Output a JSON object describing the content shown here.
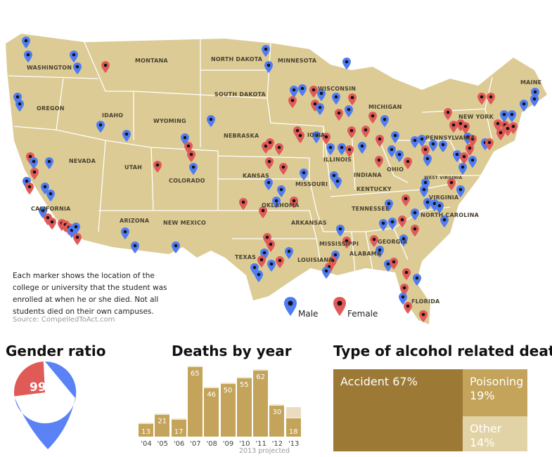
{
  "map": {
    "states": [
      "WASHINGTON",
      "MONTANA",
      "NORTH DAKOTA",
      "MINNESOTA",
      "OREGON",
      "IDAHO",
      "SOUTH DAKOTA",
      "WISCONSIN",
      "MICHIGAN",
      "WYOMING",
      "NEBRASKA",
      "IOWA",
      "NEW YORK",
      "MAINE",
      "NEVADA",
      "UTAH",
      "COLORADO",
      "ILLINOIS",
      "INDIANA",
      "OHIO",
      "PENNSYLVANIA",
      "KANSAS",
      "MISSOURI",
      "KENTUCKY",
      "WEST VIRGINIA",
      "VIRGINIA",
      "CALIFORNIA",
      "TENNESSEE",
      "NORTH CAROLINA",
      "ARIZONA",
      "NEW MEXICO",
      "OKLAHOMA",
      "ARKANSAS",
      "MISSISSIPPI",
      "ALABAMA",
      "GEORGIA",
      "TEXAS",
      "LOUISIANA",
      "FLORIDA"
    ],
    "note": "Each marker shows the location of the college or university that the student was enrolled at when he or she died. Not all students died on their own campuses.",
    "source": "Source: CompelledToAct.com",
    "legend": {
      "male": "Male",
      "female": "Female"
    },
    "colors": {
      "land": "#dccb95",
      "male": "#4f7cf2",
      "female": "#e05a58"
    }
  },
  "chart_data": [
    {
      "type": "pie",
      "title": "Gender ratio",
      "categories": [
        "Female",
        "Male"
      ],
      "values": [
        99,
        279
      ],
      "colors": [
        "#e05a58",
        "#5b82f5"
      ]
    },
    {
      "type": "bar",
      "title": "Deaths by year",
      "categories": [
        "'04",
        "'05",
        "'06",
        "'07",
        "'08",
        "'09",
        "'10",
        "'11",
        "'12",
        "'13"
      ],
      "values": [
        13,
        21,
        17,
        65,
        46,
        50,
        55,
        62,
        30,
        18
      ],
      "projected_2013": 27,
      "note": "2013 projected",
      "color": "#c4a35a"
    },
    {
      "type": "treemap",
      "title": "Type of alcohol related death",
      "categories": [
        "Accident",
        "Poisoning",
        "Other"
      ],
      "values": [
        67,
        19,
        14
      ],
      "labels": [
        "Accident 67%",
        "Poisoning 19%",
        "Other 14%"
      ],
      "colors": [
        "#9c7a36",
        "#c4a35a",
        "#e2d3a6"
      ]
    }
  ]
}
